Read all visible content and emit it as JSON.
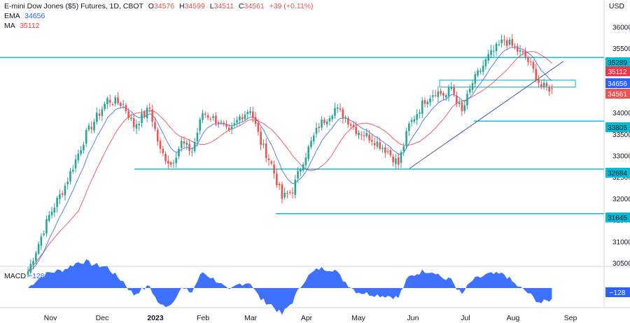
{
  "header": {
    "title": "E-mini Dow Jones ($5) Futures, 1D, CBOT",
    "o_label": "O",
    "o": "34576",
    "h_label": "H",
    "h": "34599",
    "l_label": "L",
    "l": "34511",
    "c_label": "C",
    "c": "34561",
    "change": "+39 (+0.11%)",
    "ema_label": "EMA",
    "ema_value": "34656",
    "ma_label": "MA",
    "ma_value": "35112",
    "currency": "USD"
  },
  "macd": {
    "label": "MACD",
    "value": "−128",
    "badge": "−128"
  },
  "colors": {
    "up": "#26a69a",
    "down": "#ef5350",
    "ema": "#2962ff",
    "ma": "#f23645",
    "level": "#00bcd4",
    "trendline": "#3f51b5",
    "macd": "#2962ff"
  },
  "chart_data": {
    "type": "candlestick",
    "y_axis_ticks": [
      30500,
      31000,
      31500,
      32000,
      32500,
      33000,
      33500,
      34000,
      34500,
      35000,
      35500,
      36000
    ],
    "ylim": [
      30450,
      36400
    ],
    "x_axis_labels": [
      "Nov",
      "Dec",
      "2023",
      "Feb",
      "Mar",
      "Apr",
      "May",
      "Jun",
      "Jul",
      "Aug",
      "Sep"
    ],
    "horizontal_levels": [
      35289,
      33805,
      32684,
      31645
    ],
    "price_badges": [
      {
        "label": "35289",
        "value": 35289,
        "color": "#00bcd4"
      },
      {
        "label": "35112",
        "value": 35112,
        "color": "#f23645"
      },
      {
        "label": "34656",
        "value": 34656,
        "color": "#2962ff"
      },
      {
        "label": "34561",
        "value": 34561,
        "color": "#ef5350"
      },
      {
        "label": "33805",
        "value": 33805,
        "color": "#00bcd4"
      },
      {
        "label": "32684",
        "value": 32684,
        "color": "#00bcd4"
      },
      {
        "label": "31645",
        "value": 31645,
        "color": "#00bcd4"
      }
    ],
    "close_anchors": [
      [
        0,
        30300
      ],
      [
        8,
        31600
      ],
      [
        14,
        32300
      ],
      [
        22,
        33500
      ],
      [
        30,
        34300
      ],
      [
        36,
        34200
      ],
      [
        40,
        33700
      ],
      [
        46,
        34100
      ],
      [
        50,
        33100
      ],
      [
        54,
        32800
      ],
      [
        58,
        33300
      ],
      [
        62,
        33100
      ],
      [
        66,
        34000
      ],
      [
        72,
        33800
      ],
      [
        76,
        33500
      ],
      [
        80,
        33900
      ],
      [
        84,
        34100
      ],
      [
        88,
        33300
      ],
      [
        92,
        32800
      ],
      [
        96,
        32000
      ],
      [
        100,
        32200
      ],
      [
        104,
        32900
      ],
      [
        110,
        33700
      ],
      [
        116,
        34100
      ],
      [
        120,
        33900
      ],
      [
        124,
        33600
      ],
      [
        130,
        33400
      ],
      [
        136,
        33100
      ],
      [
        140,
        32800
      ],
      [
        144,
        33700
      ],
      [
        150,
        34300
      ],
      [
        154,
        34500
      ],
      [
        158,
        34400
      ],
      [
        160,
        34600
      ],
      [
        164,
        34000
      ],
      [
        168,
        34700
      ],
      [
        174,
        35300
      ],
      [
        180,
        35700
      ],
      [
        184,
        35500
      ],
      [
        188,
        35300
      ],
      [
        190,
        35100
      ],
      [
        194,
        34600
      ],
      [
        198,
        34561
      ]
    ],
    "series": [
      {
        "name": "EMA",
        "last": 34656
      },
      {
        "name": "MA",
        "last": 35112
      }
    ]
  }
}
